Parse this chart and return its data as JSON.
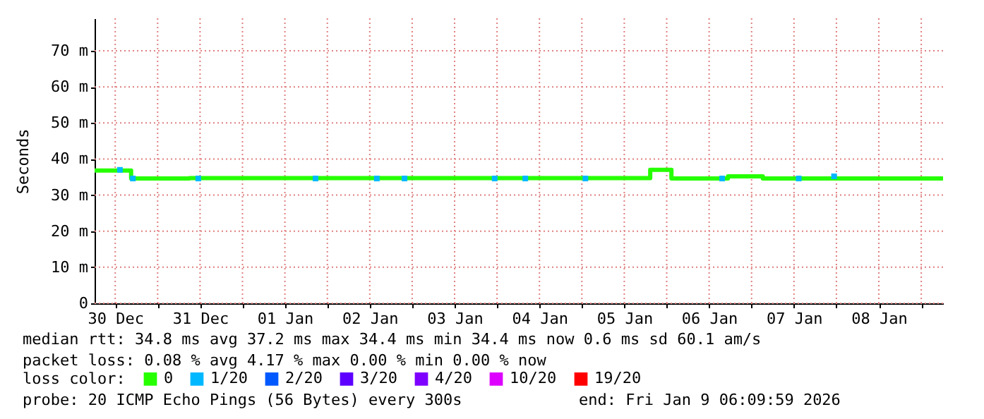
{
  "chart_data": {
    "type": "step",
    "ylabel": "Seconds",
    "legend_title": "loss color:",
    "legend": "bottom left",
    "grid": true,
    "xlim": [
      "2025-12-30T06:10",
      "2026-01-09T06:10"
    ],
    "xticks": [
      {
        "value": "2025-12-30T12:00",
        "label": "30 Dec"
      },
      {
        "value": "2025-12-31T00:00",
        "label": null
      },
      {
        "value": "2025-12-31T12:00",
        "label": "31 Dec"
      },
      {
        "value": "2026-01-01T00:00",
        "label": null
      },
      {
        "value": "2026-01-01T12:00",
        "label": "01 Jan"
      },
      {
        "value": "2026-01-02T00:00",
        "label": null
      },
      {
        "value": "2026-01-02T12:00",
        "label": "02 Jan"
      },
      {
        "value": "2026-01-03T00:00",
        "label": null
      },
      {
        "value": "2026-01-03T12:00",
        "label": "03 Jan"
      },
      {
        "value": "2026-01-04T00:00",
        "label": null
      },
      {
        "value": "2026-01-04T12:00",
        "label": "04 Jan"
      },
      {
        "value": "2026-01-05T00:00",
        "label": null
      },
      {
        "value": "2026-01-05T12:00",
        "label": "05 Jan"
      },
      {
        "value": "2026-01-06T00:00",
        "label": null
      },
      {
        "value": "2026-01-06T12:00",
        "label": "06 Jan"
      },
      {
        "value": "2026-01-07T00:00",
        "label": null
      },
      {
        "value": "2026-01-07T12:00",
        "label": "07 Jan"
      },
      {
        "value": "2026-01-08T00:00",
        "label": null
      },
      {
        "value": "2026-01-08T12:00",
        "label": "08 Jan"
      },
      {
        "value": "2026-01-09T00:00",
        "label": null
      }
    ],
    "ylim": [
      0,
      79
    ],
    "yticks": [
      0,
      {
        "value": 10,
        "label": "10 m"
      },
      {
        "value": 20,
        "label": "20 m"
      },
      {
        "value": 30,
        "label": "30 m"
      },
      {
        "value": 40,
        "label": "40 m"
      },
      {
        "value": 50,
        "label": "50 m"
      },
      {
        "value": 60,
        "label": "60 m"
      },
      {
        "value": 70,
        "label": "70 m"
      }
    ],
    "series": [
      {
        "name": "0",
        "color": "#26ff00",
        "x": [
          "2025-12-30T06:10",
          "2025-12-30T16:30",
          "2025-12-31T09:00",
          "2026-01-05T19:20",
          "2026-01-06T01:20",
          "2026-01-06T17:20",
          "2026-01-07T03:10",
          "2026-01-09T06:10"
        ],
        "values": [
          36.8,
          34.6,
          34.7,
          37,
          34.6,
          35.2,
          34.6,
          34.6
        ]
      },
      {
        "name": "1/20",
        "type": "scatter",
        "color": "#00b8ff",
        "x": [
          "2025-12-30T13:20",
          "2025-12-30T17:00",
          "2025-12-31T11:30",
          "2026-01-01T20:40",
          "2026-01-02T14:00",
          "2026-01-02T21:50",
          "2026-01-03T23:20",
          "2026-01-04T08:00",
          "2026-01-05T01:00",
          "2026-01-06T15:40",
          "2026-01-07T13:20",
          "2026-01-07T23:20"
        ],
        "values": [
          37,
          34.6,
          34.6,
          34.6,
          34.6,
          34.6,
          34.6,
          34.6,
          34.6,
          34.6,
          34.6,
          35.2
        ]
      },
      {
        "name": "2/20",
        "type": "scatter",
        "color": "#0059ff"
      },
      {
        "name": "3/20",
        "type": "scatter",
        "color": "#5e00ff"
      },
      {
        "name": "4/20",
        "type": "scatter",
        "color": "#7e00ff"
      },
      {
        "name": "10/20",
        "type": "scatter",
        "color": "#dd00ff"
      },
      {
        "name": "19/20",
        "type": "scatter",
        "color": "#ff0000"
      }
    ],
    "annotations": [
      "median rtt:  34.8 ms avg  37.2 ms max  34.4 ms min  34.4 ms now  0.6 ms sd  60.1   am/s",
      "packet loss: 0.08 % avg  4.17 % max  0.00 % min  0.00 % now",
      "probe:       20 ICMP Echo Pings (56 Bytes) every 300s",
      "end: Fri Jan  9 06:09:59 2026"
    ]
  }
}
